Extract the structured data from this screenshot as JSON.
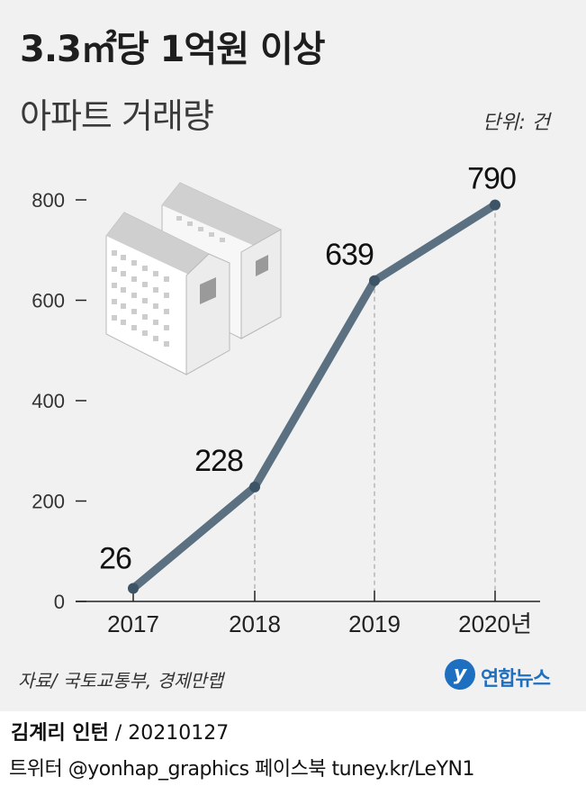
{
  "header": {
    "title": "3.3㎡당 1억원 이상",
    "subtitle": "아파트 거래량",
    "unit": "단위: 건"
  },
  "chart_data": {
    "type": "line",
    "title": "3.3㎡당 1억원 이상 아파트 거래량",
    "unit": "단위: 건",
    "x": [
      "2017",
      "2018",
      "2019",
      "2020년"
    ],
    "values": [
      26,
      228,
      639,
      790
    ],
    "data_labels": [
      "26",
      "228",
      "639",
      "790"
    ],
    "yticks": [
      "0",
      "200",
      "400",
      "600",
      "800"
    ],
    "ylim": [
      0,
      800
    ],
    "grid": false,
    "colors": {
      "line": "#5b7081",
      "marker": "#3d5466",
      "axis": "#222222",
      "guide": "#999999"
    }
  },
  "footer": {
    "source": "자료/ 국토교통부, 경제만랩",
    "logo_text": "연합뉴스",
    "logo_mark": "y",
    "author": "김계리 인턴",
    "date": " / 20210127",
    "social": "트위터 @yonhap_graphics  페이스북 tuney.kr/LeYN1"
  }
}
